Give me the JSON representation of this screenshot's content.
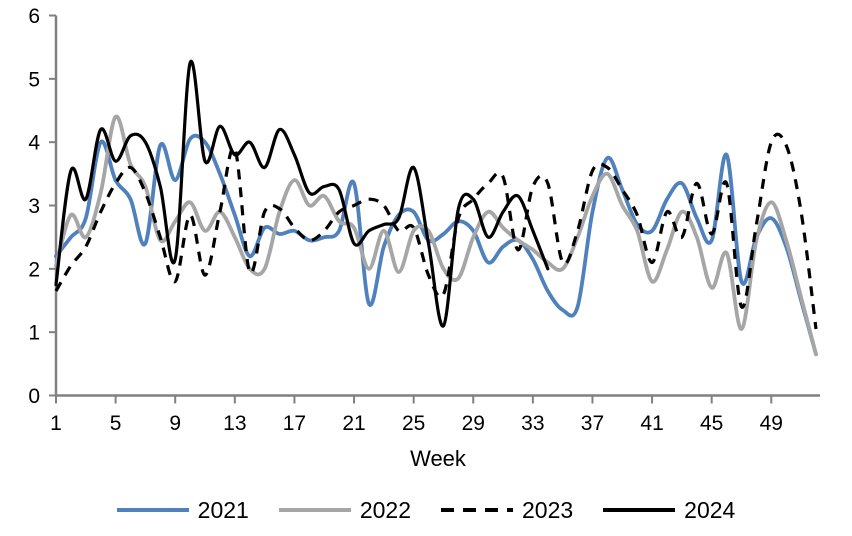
{
  "chart_data": {
    "type": "line",
    "title": "",
    "xlabel": "Week",
    "ylabel": "",
    "grid": false,
    "legend_position": "bottom",
    "xlim": [
      1,
      52
    ],
    "ylim": [
      0,
      6
    ],
    "x_ticks": [
      1,
      5,
      9,
      13,
      17,
      21,
      25,
      29,
      33,
      37,
      41,
      45,
      49
    ],
    "y_ticks": [
      0,
      1,
      2,
      3,
      4,
      5,
      6
    ],
    "axis_color": "#808080",
    "text_color": "#000000",
    "x": [
      1,
      2,
      3,
      4,
      5,
      6,
      7,
      8,
      9,
      10,
      11,
      12,
      13,
      14,
      15,
      16,
      17,
      18,
      19,
      20,
      21,
      22,
      23,
      24,
      25,
      26,
      27,
      28,
      29,
      30,
      31,
      32,
      33,
      34,
      35,
      36,
      37,
      38,
      39,
      40,
      41,
      42,
      43,
      44,
      45,
      46,
      47,
      48,
      49,
      50,
      51,
      52
    ],
    "series": [
      {
        "name": "2021",
        "color": "#4F81BD",
        "style": "solid",
        "values": [
          2.2,
          2.5,
          2.8,
          4.0,
          3.4,
          3.1,
          2.4,
          3.95,
          3.4,
          4.05,
          4.0,
          3.5,
          2.85,
          2.2,
          2.65,
          2.55,
          2.6,
          2.45,
          2.5,
          2.6,
          3.35,
          1.45,
          2.35,
          2.85,
          2.9,
          2.45,
          2.55,
          2.75,
          2.6,
          2.1,
          2.35,
          2.45,
          2.15,
          1.65,
          1.35,
          1.4,
          2.9,
          3.75,
          3.25,
          2.7,
          2.6,
          3.1,
          3.35,
          2.8,
          2.45,
          3.8,
          1.8,
          2.5,
          2.8,
          2.35,
          1.5,
          0.65
        ]
      },
      {
        "name": "2022",
        "color": "#A6A6A6",
        "style": "solid",
        "values": [
          2.05,
          2.85,
          2.5,
          3.2,
          4.4,
          3.65,
          3.3,
          2.45,
          2.75,
          3.05,
          2.6,
          2.9,
          2.5,
          2.0,
          2.0,
          2.9,
          3.4,
          3.0,
          3.15,
          2.75,
          2.65,
          2.0,
          2.6,
          1.95,
          2.6,
          2.6,
          2.0,
          1.85,
          2.5,
          2.9,
          2.65,
          2.45,
          2.3,
          2.1,
          2.0,
          2.5,
          3.15,
          3.5,
          3.0,
          2.6,
          1.8,
          2.3,
          2.9,
          2.5,
          1.7,
          2.25,
          1.05,
          2.45,
          3.05,
          2.45,
          1.55,
          0.65
        ]
      },
      {
        "name": "2023",
        "color": "#000000",
        "style": "dashed",
        "values": [
          1.65,
          2.05,
          2.35,
          2.9,
          3.35,
          3.6,
          3.2,
          2.5,
          1.8,
          2.85,
          1.9,
          2.9,
          3.9,
          1.95,
          2.9,
          2.95,
          2.65,
          2.45,
          2.6,
          2.9,
          3.0,
          3.1,
          3.0,
          2.6,
          2.65,
          1.9,
          1.6,
          2.8,
          3.1,
          3.35,
          3.45,
          2.3,
          3.3,
          3.35,
          2.1,
          2.6,
          3.55,
          3.6,
          3.25,
          2.85,
          2.1,
          2.9,
          2.5,
          3.35,
          2.55,
          3.35,
          1.4,
          2.7,
          4.0,
          3.95,
          2.9,
          1.05
        ]
      },
      {
        "name": "2024",
        "color": "#000000",
        "style": "solid",
        "values": [
          1.75,
          3.55,
          3.1,
          4.2,
          3.7,
          4.1,
          4.0,
          3.3,
          2.15,
          5.25,
          3.7,
          4.25,
          3.8,
          4.0,
          3.6,
          4.2,
          3.8,
          3.2,
          3.3,
          3.25,
          2.4,
          2.6,
          2.7,
          2.8,
          3.6,
          2.4,
          1.1,
          2.95,
          3.1,
          2.5,
          2.9,
          3.15,
          2.6,
          2.0
        ]
      }
    ]
  }
}
